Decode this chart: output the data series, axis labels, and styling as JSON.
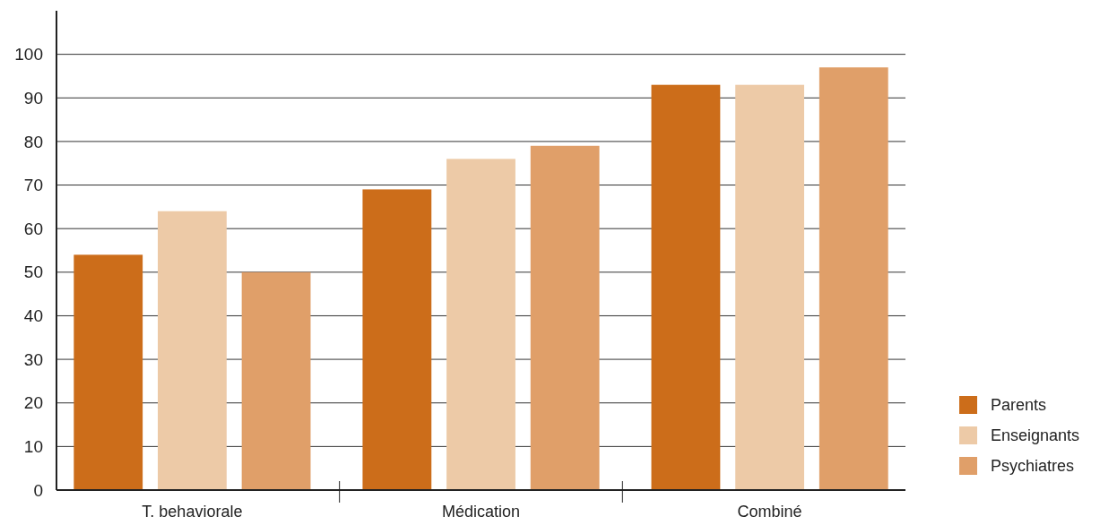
{
  "chart_data": {
    "type": "bar",
    "categories": [
      "T. behaviorale",
      "Médication",
      "Combiné"
    ],
    "series": [
      {
        "name": "Parents",
        "color": "#cc6d1a",
        "values": [
          54,
          69,
          93
        ]
      },
      {
        "name": "Enseignants",
        "color": "#edcaa7",
        "values": [
          64,
          76,
          93
        ]
      },
      {
        "name": "Psychiatres",
        "color": "#e09f69",
        "values": [
          50,
          79,
          97
        ]
      }
    ],
    "ylim": [
      0,
      110
    ],
    "yticks": [
      0,
      10,
      20,
      30,
      40,
      50,
      60,
      70,
      80,
      90,
      100
    ],
    "grid": "y",
    "legend": "bottom right"
  }
}
